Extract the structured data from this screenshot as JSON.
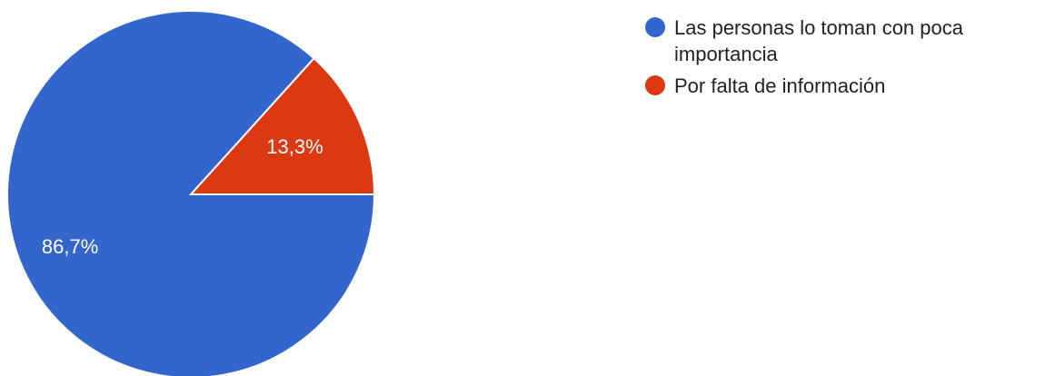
{
  "chart_data": {
    "type": "pie",
    "title": "",
    "slices": [
      {
        "label": "Las personas lo toman con poca importancia",
        "value": 86.7,
        "value_label": "86,7%",
        "color": "#3366cc"
      },
      {
        "label": "Por falta de información",
        "value": 13.3,
        "value_label": "13,3%",
        "color": "#dc3912"
      }
    ],
    "legend_position": "right"
  },
  "legend": {
    "items": [
      {
        "label": "Las personas lo toman con poca importancia",
        "color": "#3366cc"
      },
      {
        "label": "Por falta de información",
        "color": "#dc3912"
      }
    ]
  }
}
